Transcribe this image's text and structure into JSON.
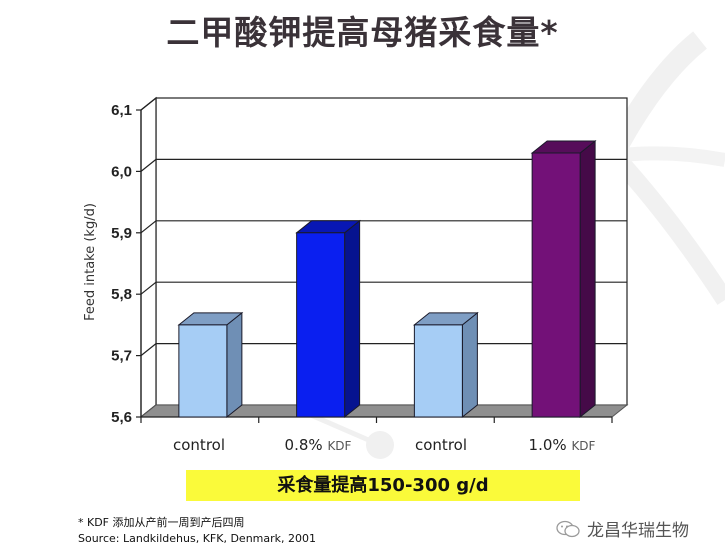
{
  "title": "二甲酸钾提高母猪采食量*",
  "chart_data": {
    "type": "bar",
    "style": "3d-column",
    "title": "二甲酸钾提高母猪采食量*",
    "xlabel": "",
    "ylabel": "Feed intake (kg/d)",
    "categories": [
      "control",
      "0.8% KDF",
      "control",
      "1.0% KDF"
    ],
    "values": [
      5.75,
      5.9,
      5.75,
      6.03
    ],
    "colors": [
      "#a6cdf5",
      "#0a1ff0",
      "#a6cdf5",
      "#731178"
    ],
    "ylim": [
      5.6,
      6.1
    ],
    "yticks": [
      "5,6",
      "5,7",
      "5,8",
      "5,9",
      "6,0",
      "6,1"
    ],
    "grid": true,
    "legend": "none"
  },
  "axis": {
    "ylabel": "Feed intake (kg/d)",
    "yticks": [
      "5,6",
      "5,7",
      "5,8",
      "5,9",
      "6,0",
      "6,1"
    ]
  },
  "categories": [
    {
      "main": "control",
      "sub": ""
    },
    {
      "main": "0.8%",
      "sub": "KDF"
    },
    {
      "main": "control",
      "sub": ""
    },
    {
      "main": "1.0%",
      "sub": "KDF"
    }
  ],
  "highlight": {
    "text": "采食量提高150-300 g/d",
    "color": "#fafa3a"
  },
  "footnotes": {
    "note": "* KDF 添加从产前一周到产后四周",
    "source": "Source: Landkildehus, KFK, Denmark, 2001"
  },
  "brand": {
    "name": "龙昌华瑞生物",
    "icon": "wechat-icon"
  }
}
